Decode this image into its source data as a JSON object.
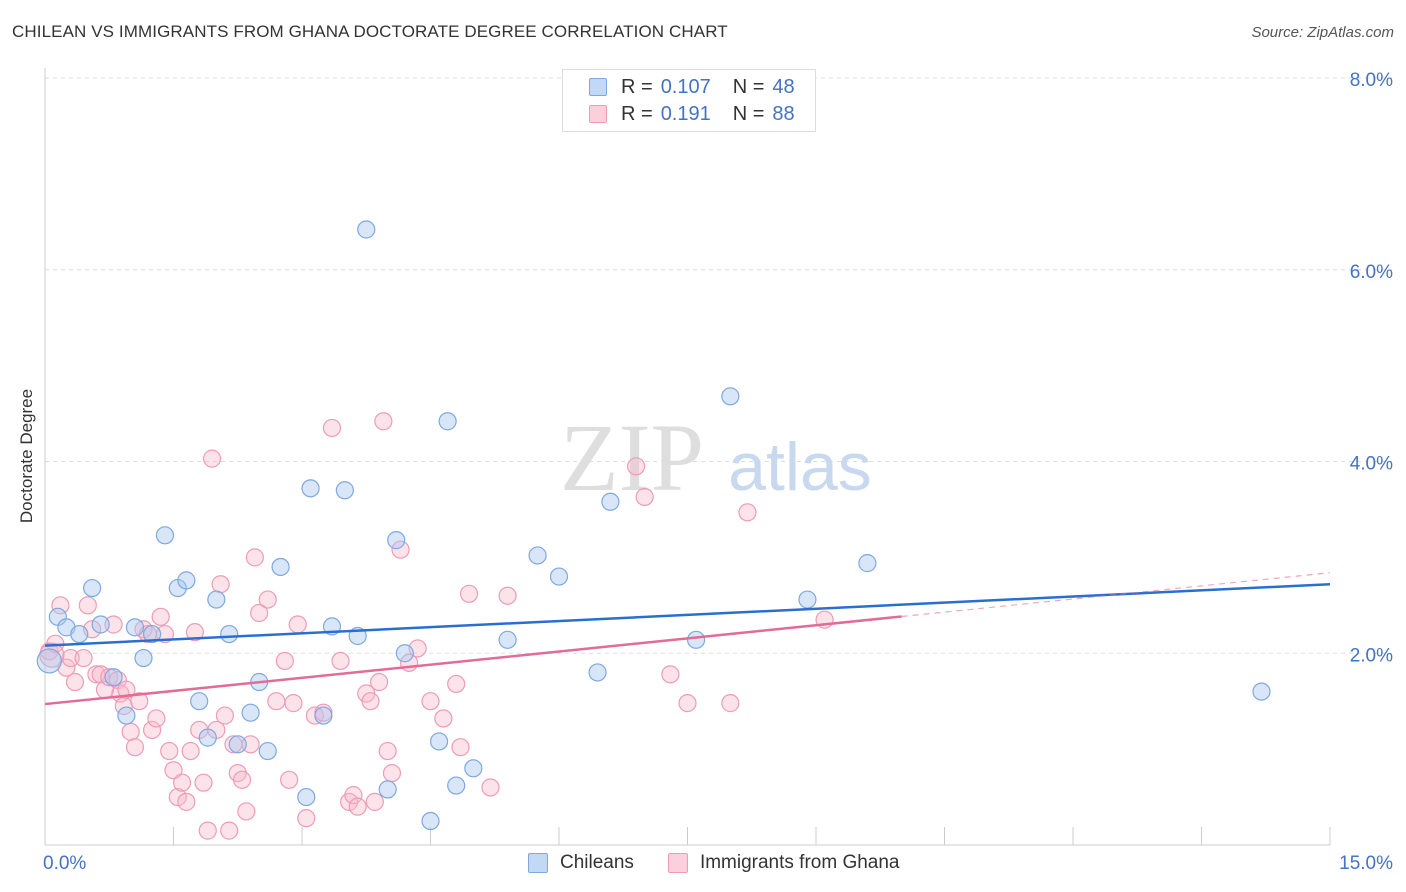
{
  "title": "CHILEAN VS IMMIGRANTS FROM GHANA DOCTORATE DEGREE CORRELATION CHART",
  "source": "Source: ZipAtlas.com",
  "watermark": {
    "zip": "ZIP",
    "atlas": "atlas"
  },
  "legend": {
    "rows": [
      {
        "r_label": "R =",
        "r_value": "0.107",
        "n_label": "N =",
        "n_value": "48",
        "color": "#a9c8f0"
      },
      {
        "r_label": "R =",
        "r_value": "0.191",
        "n_label": "N =",
        "n_value": "88",
        "color": "#f7b8cb"
      }
    ]
  },
  "chart_data": {
    "type": "scatter",
    "title": "CHILEAN VS IMMIGRANTS FROM GHANA DOCTORATE DEGREE CORRELATION CHART",
    "xlabel": "",
    "ylabel": "Doctorate Degree",
    "xlim": [
      0,
      15
    ],
    "ylim": [
      0,
      8.0
    ],
    "x_tick_labels": [
      {
        "value": 0,
        "label": "0.0%"
      },
      {
        "value": 15,
        "label": "15.0%"
      }
    ],
    "y_tick_labels": [
      {
        "value": 2,
        "label": "2.0%"
      },
      {
        "value": 4,
        "label": "4.0%"
      },
      {
        "value": 6,
        "label": "6.0%"
      },
      {
        "value": 8,
        "label": "8.0%"
      }
    ],
    "grid": true,
    "series": [
      {
        "name": "Chileans",
        "color": "#4a80d0",
        "fill": "#a9c8f0",
        "r": 0.107,
        "n": 48,
        "trend": {
          "x0": 0,
          "y0": 2.08,
          "x1": 15,
          "y1": 2.72,
          "solid_to": 15
        },
        "points": [
          [
            0.05,
            1.92
          ],
          [
            0.15,
            2.38
          ],
          [
            0.25,
            2.27
          ],
          [
            0.4,
            2.2
          ],
          [
            0.55,
            2.68
          ],
          [
            0.65,
            2.3
          ],
          [
            0.8,
            1.75
          ],
          [
            0.95,
            1.35
          ],
          [
            1.05,
            2.27
          ],
          [
            1.15,
            1.95
          ],
          [
            1.25,
            2.2
          ],
          [
            1.4,
            3.23
          ],
          [
            1.55,
            2.68
          ],
          [
            1.65,
            2.76
          ],
          [
            1.8,
            1.5
          ],
          [
            1.9,
            1.12
          ],
          [
            2.0,
            2.56
          ],
          [
            2.15,
            2.2
          ],
          [
            2.25,
            1.05
          ],
          [
            2.4,
            1.38
          ],
          [
            2.5,
            1.7
          ],
          [
            2.6,
            0.98
          ],
          [
            2.75,
            2.9
          ],
          [
            3.05,
            0.5
          ],
          [
            3.1,
            3.72
          ],
          [
            3.25,
            1.35
          ],
          [
            3.35,
            2.28
          ],
          [
            3.5,
            3.7
          ],
          [
            3.65,
            2.18
          ],
          [
            3.75,
            6.42
          ],
          [
            4.0,
            0.58
          ],
          [
            4.1,
            3.18
          ],
          [
            4.2,
            2.0
          ],
          [
            4.5,
            0.25
          ],
          [
            4.6,
            1.08
          ],
          [
            4.7,
            4.42
          ],
          [
            4.8,
            0.62
          ],
          [
            5.0,
            0.8
          ],
          [
            5.4,
            2.14
          ],
          [
            5.75,
            3.02
          ],
          [
            6.0,
            2.8
          ],
          [
            6.45,
            1.8
          ],
          [
            6.6,
            3.58
          ],
          [
            7.6,
            2.14
          ],
          [
            8.0,
            4.68
          ],
          [
            8.9,
            2.56
          ],
          [
            9.6,
            2.94
          ],
          [
            14.2,
            1.6
          ]
        ]
      },
      {
        "name": "Immigrants from Ghana",
        "color": "#e06c97",
        "fill": "#f7b8cb",
        "r": 0.191,
        "n": 88,
        "trend": {
          "x0": 0,
          "y0": 1.47,
          "x1": 15,
          "y1": 2.84,
          "solid_to": 10.0
        },
        "points": [
          [
            0.05,
            2.02
          ],
          [
            0.12,
            2.1
          ],
          [
            0.18,
            2.5
          ],
          [
            0.25,
            1.85
          ],
          [
            0.3,
            1.95
          ],
          [
            0.35,
            1.7
          ],
          [
            0.45,
            1.95
          ],
          [
            0.5,
            2.5
          ],
          [
            0.55,
            2.25
          ],
          [
            0.6,
            1.78
          ],
          [
            0.65,
            1.78
          ],
          [
            0.7,
            1.62
          ],
          [
            0.75,
            1.75
          ],
          [
            0.8,
            2.3
          ],
          [
            0.85,
            1.72
          ],
          [
            0.88,
            1.58
          ],
          [
            0.92,
            1.45
          ],
          [
            0.95,
            1.62
          ],
          [
            1.0,
            1.18
          ],
          [
            1.05,
            1.02
          ],
          [
            1.1,
            1.5
          ],
          [
            1.15,
            2.25
          ],
          [
            1.2,
            2.2
          ],
          [
            1.25,
            1.2
          ],
          [
            1.3,
            1.32
          ],
          [
            1.35,
            2.38
          ],
          [
            1.4,
            2.2
          ],
          [
            1.45,
            0.98
          ],
          [
            1.5,
            0.78
          ],
          [
            1.55,
            0.5
          ],
          [
            1.6,
            0.65
          ],
          [
            1.65,
            0.45
          ],
          [
            1.7,
            0.98
          ],
          [
            1.75,
            2.22
          ],
          [
            1.8,
            1.2
          ],
          [
            1.85,
            0.65
          ],
          [
            1.9,
            0.15
          ],
          [
            1.95,
            4.03
          ],
          [
            2.0,
            1.2
          ],
          [
            2.05,
            2.72
          ],
          [
            2.1,
            1.35
          ],
          [
            2.15,
            0.15
          ],
          [
            2.2,
            1.05
          ],
          [
            2.25,
            0.75
          ],
          [
            2.3,
            0.68
          ],
          [
            2.35,
            0.35
          ],
          [
            2.4,
            1.05
          ],
          [
            2.45,
            3.0
          ],
          [
            2.5,
            2.42
          ],
          [
            2.6,
            2.56
          ],
          [
            2.7,
            1.5
          ],
          [
            2.8,
            1.92
          ],
          [
            2.85,
            0.68
          ],
          [
            2.9,
            1.48
          ],
          [
            2.95,
            2.3
          ],
          [
            3.05,
            0.28
          ],
          [
            3.15,
            1.35
          ],
          [
            3.25,
            1.38
          ],
          [
            3.35,
            4.35
          ],
          [
            3.45,
            1.92
          ],
          [
            3.55,
            0.45
          ],
          [
            3.6,
            0.52
          ],
          [
            3.65,
            0.4
          ],
          [
            3.75,
            1.58
          ],
          [
            3.8,
            1.5
          ],
          [
            3.85,
            0.45
          ],
          [
            3.9,
            1.7
          ],
          [
            3.95,
            4.42
          ],
          [
            4.0,
            0.98
          ],
          [
            4.05,
            0.75
          ],
          [
            4.15,
            3.08
          ],
          [
            4.25,
            1.9
          ],
          [
            4.35,
            2.05
          ],
          [
            4.5,
            1.5
          ],
          [
            4.65,
            1.32
          ],
          [
            4.8,
            1.68
          ],
          [
            4.85,
            1.02
          ],
          [
            4.95,
            2.62
          ],
          [
            5.2,
            0.6
          ],
          [
            5.4,
            2.6
          ],
          [
            6.9,
            3.95
          ],
          [
            7.0,
            3.63
          ],
          [
            7.3,
            1.78
          ],
          [
            7.5,
            1.48
          ],
          [
            8.0,
            1.48
          ],
          [
            8.2,
            3.47
          ],
          [
            9.1,
            2.35
          ],
          [
            0.08,
            1.98
          ]
        ]
      }
    ]
  }
}
